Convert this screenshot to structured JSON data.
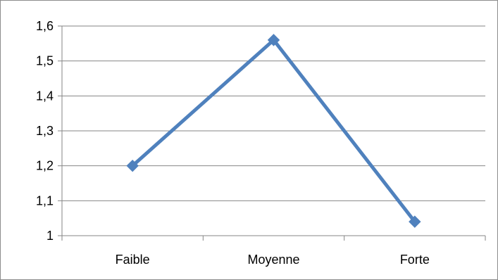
{
  "chart_data": {
    "type": "line",
    "categories": [
      "Faible",
      "Moyenne",
      "Forte"
    ],
    "series": [
      {
        "values": [
          1.2,
          1.56,
          1.04
        ]
      }
    ],
    "y_ticks": [
      "1",
      "1,1",
      "1,2",
      "1,3",
      "1,4",
      "1,5",
      "1,6"
    ],
    "ylim": [
      1,
      1.6
    ],
    "grid": true,
    "legend": "none",
    "marker": "diamond",
    "colors": {
      "series": "#4f81bd",
      "grid": "#868686",
      "axis": "#868686"
    }
  }
}
